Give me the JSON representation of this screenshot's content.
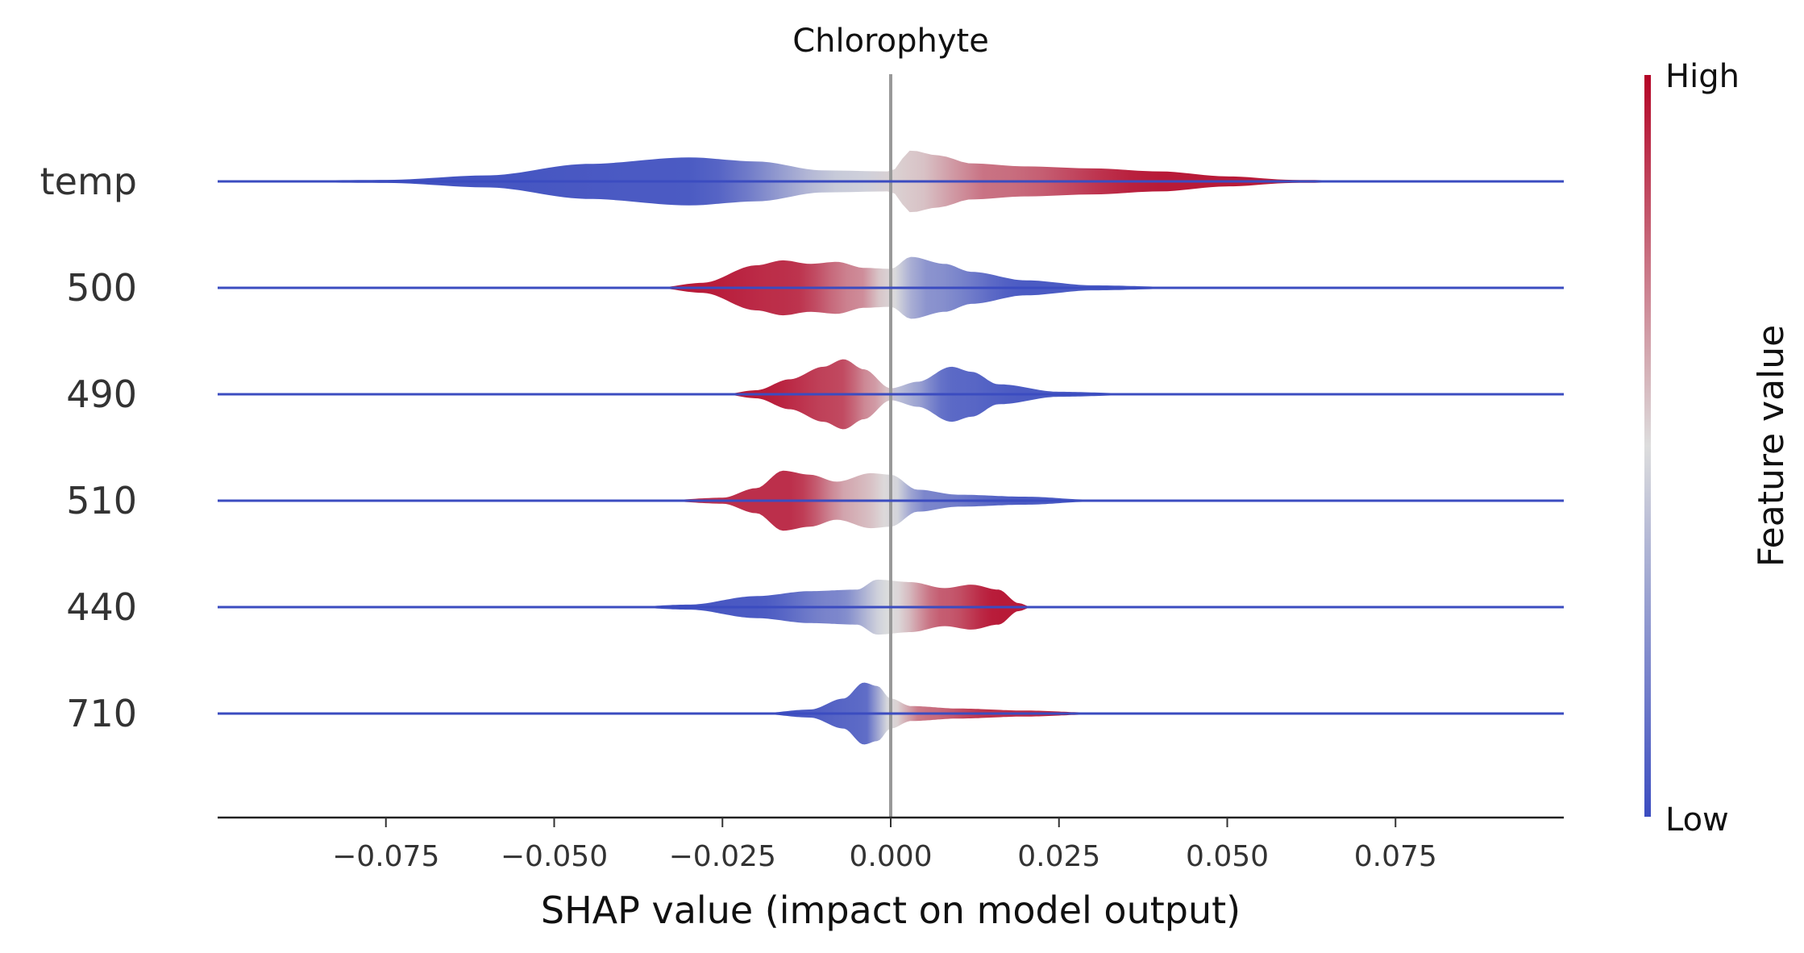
{
  "chart_data": {
    "type": "violin",
    "title": "Chlorophyte",
    "xlabel": "SHAP value (impact on model output)",
    "ylabel": "",
    "xlim": [
      -0.1,
      0.1
    ],
    "xticks": [
      -0.075,
      -0.05,
      -0.025,
      0.0,
      0.025,
      0.05,
      0.075
    ],
    "xtick_labels": [
      "−0.075",
      "−0.050",
      "−0.025",
      "0.000",
      "0.025",
      "0.050",
      "0.075"
    ],
    "features": [
      "temp",
      "500",
      "490",
      "510",
      "440",
      "710"
    ],
    "colorbar": {
      "label": "Feature value",
      "high_label": "High",
      "low_label": "Low",
      "low_color": "#3b4cc0",
      "mid_color": "#dddddd",
      "high_color": "#b40426"
    },
    "zero_line": 0.0,
    "series": [
      {
        "feature": "temp",
        "density": [
          [
            -0.1,
            0.0
          ],
          [
            -0.075,
            0.03
          ],
          [
            -0.06,
            0.12
          ],
          [
            -0.045,
            0.35
          ],
          [
            -0.03,
            0.48
          ],
          [
            -0.02,
            0.4
          ],
          [
            -0.01,
            0.22
          ],
          [
            0.0,
            0.2
          ],
          [
            0.003,
            0.62
          ],
          [
            0.007,
            0.52
          ],
          [
            0.012,
            0.36
          ],
          [
            0.02,
            0.3
          ],
          [
            0.03,
            0.26
          ],
          [
            0.04,
            0.2
          ],
          [
            0.05,
            0.1
          ],
          [
            0.06,
            0.03
          ],
          [
            0.075,
            0.0
          ]
        ],
        "value_trend": [
          [
            -0.1,
            0.0
          ],
          [
            -0.03,
            0.05
          ],
          [
            -0.005,
            0.45
          ],
          [
            0.003,
            0.55
          ],
          [
            0.015,
            0.75
          ],
          [
            0.04,
            0.95
          ]
        ]
      },
      {
        "feature": "500",
        "density": [
          [
            -0.035,
            0.0
          ],
          [
            -0.028,
            0.1
          ],
          [
            -0.02,
            0.45
          ],
          [
            -0.016,
            0.55
          ],
          [
            -0.012,
            0.48
          ],
          [
            -0.008,
            0.52
          ],
          [
            -0.004,
            0.4
          ],
          [
            0.0,
            0.38
          ],
          [
            0.003,
            0.62
          ],
          [
            0.008,
            0.48
          ],
          [
            0.012,
            0.32
          ],
          [
            0.02,
            0.15
          ],
          [
            0.03,
            0.05
          ],
          [
            0.045,
            0.01
          ],
          [
            0.06,
            0.0
          ]
        ],
        "value_trend": [
          [
            -0.03,
            0.95
          ],
          [
            -0.015,
            0.9
          ],
          [
            -0.005,
            0.7
          ],
          [
            0.0,
            0.5
          ],
          [
            0.005,
            0.25
          ],
          [
            0.02,
            0.05
          ]
        ]
      },
      {
        "feature": "490",
        "density": [
          [
            -0.025,
            0.0
          ],
          [
            -0.02,
            0.08
          ],
          [
            -0.015,
            0.3
          ],
          [
            -0.01,
            0.55
          ],
          [
            -0.007,
            0.7
          ],
          [
            -0.004,
            0.5
          ],
          [
            0.0,
            0.12
          ],
          [
            0.004,
            0.25
          ],
          [
            0.009,
            0.55
          ],
          [
            0.012,
            0.45
          ],
          [
            0.016,
            0.2
          ],
          [
            0.025,
            0.05
          ],
          [
            0.04,
            0.0
          ]
        ],
        "value_trend": [
          [
            -0.02,
            0.95
          ],
          [
            -0.008,
            0.85
          ],
          [
            -0.002,
            0.65
          ],
          [
            0.002,
            0.35
          ],
          [
            0.009,
            0.1
          ],
          [
            0.02,
            0.05
          ]
        ]
      },
      {
        "feature": "510",
        "density": [
          [
            -0.035,
            0.0
          ],
          [
            -0.025,
            0.06
          ],
          [
            -0.02,
            0.25
          ],
          [
            -0.016,
            0.6
          ],
          [
            -0.012,
            0.52
          ],
          [
            -0.008,
            0.38
          ],
          [
            -0.003,
            0.55
          ],
          [
            0.0,
            0.52
          ],
          [
            0.004,
            0.22
          ],
          [
            0.01,
            0.12
          ],
          [
            0.02,
            0.08
          ],
          [
            0.03,
            0.02
          ],
          [
            0.045,
            0.0
          ]
        ],
        "value_trend": [
          [
            -0.03,
            0.9
          ],
          [
            -0.015,
            0.9
          ],
          [
            -0.005,
            0.6
          ],
          [
            0.0,
            0.5
          ],
          [
            0.005,
            0.2
          ],
          [
            0.02,
            0.05
          ]
        ]
      },
      {
        "feature": "440",
        "density": [
          [
            -0.04,
            0.0
          ],
          [
            -0.03,
            0.05
          ],
          [
            -0.02,
            0.22
          ],
          [
            -0.012,
            0.32
          ],
          [
            -0.005,
            0.35
          ],
          [
            -0.002,
            0.55
          ],
          [
            0.003,
            0.5
          ],
          [
            0.008,
            0.38
          ],
          [
            0.012,
            0.45
          ],
          [
            0.016,
            0.35
          ],
          [
            0.019,
            0.08
          ],
          [
            0.021,
            0.0
          ]
        ],
        "value_trend": [
          [
            -0.04,
            0.0
          ],
          [
            -0.02,
            0.05
          ],
          [
            -0.008,
            0.2
          ],
          [
            0.0,
            0.5
          ],
          [
            0.008,
            0.8
          ],
          [
            0.016,
            0.95
          ]
        ]
      },
      {
        "feature": "710",
        "density": [
          [
            -0.02,
            0.0
          ],
          [
            -0.012,
            0.08
          ],
          [
            -0.007,
            0.3
          ],
          [
            -0.004,
            0.62
          ],
          [
            -0.002,
            0.55
          ],
          [
            0.0,
            0.3
          ],
          [
            0.003,
            0.15
          ],
          [
            0.01,
            0.1
          ],
          [
            0.02,
            0.06
          ],
          [
            0.03,
            0.02
          ],
          [
            0.04,
            0.0
          ]
        ],
        "value_trend": [
          [
            -0.02,
            0.0
          ],
          [
            -0.004,
            0.1
          ],
          [
            0.0,
            0.5
          ],
          [
            0.005,
            0.75
          ],
          [
            0.015,
            0.9
          ],
          [
            0.03,
            0.95
          ]
        ]
      }
    ]
  }
}
